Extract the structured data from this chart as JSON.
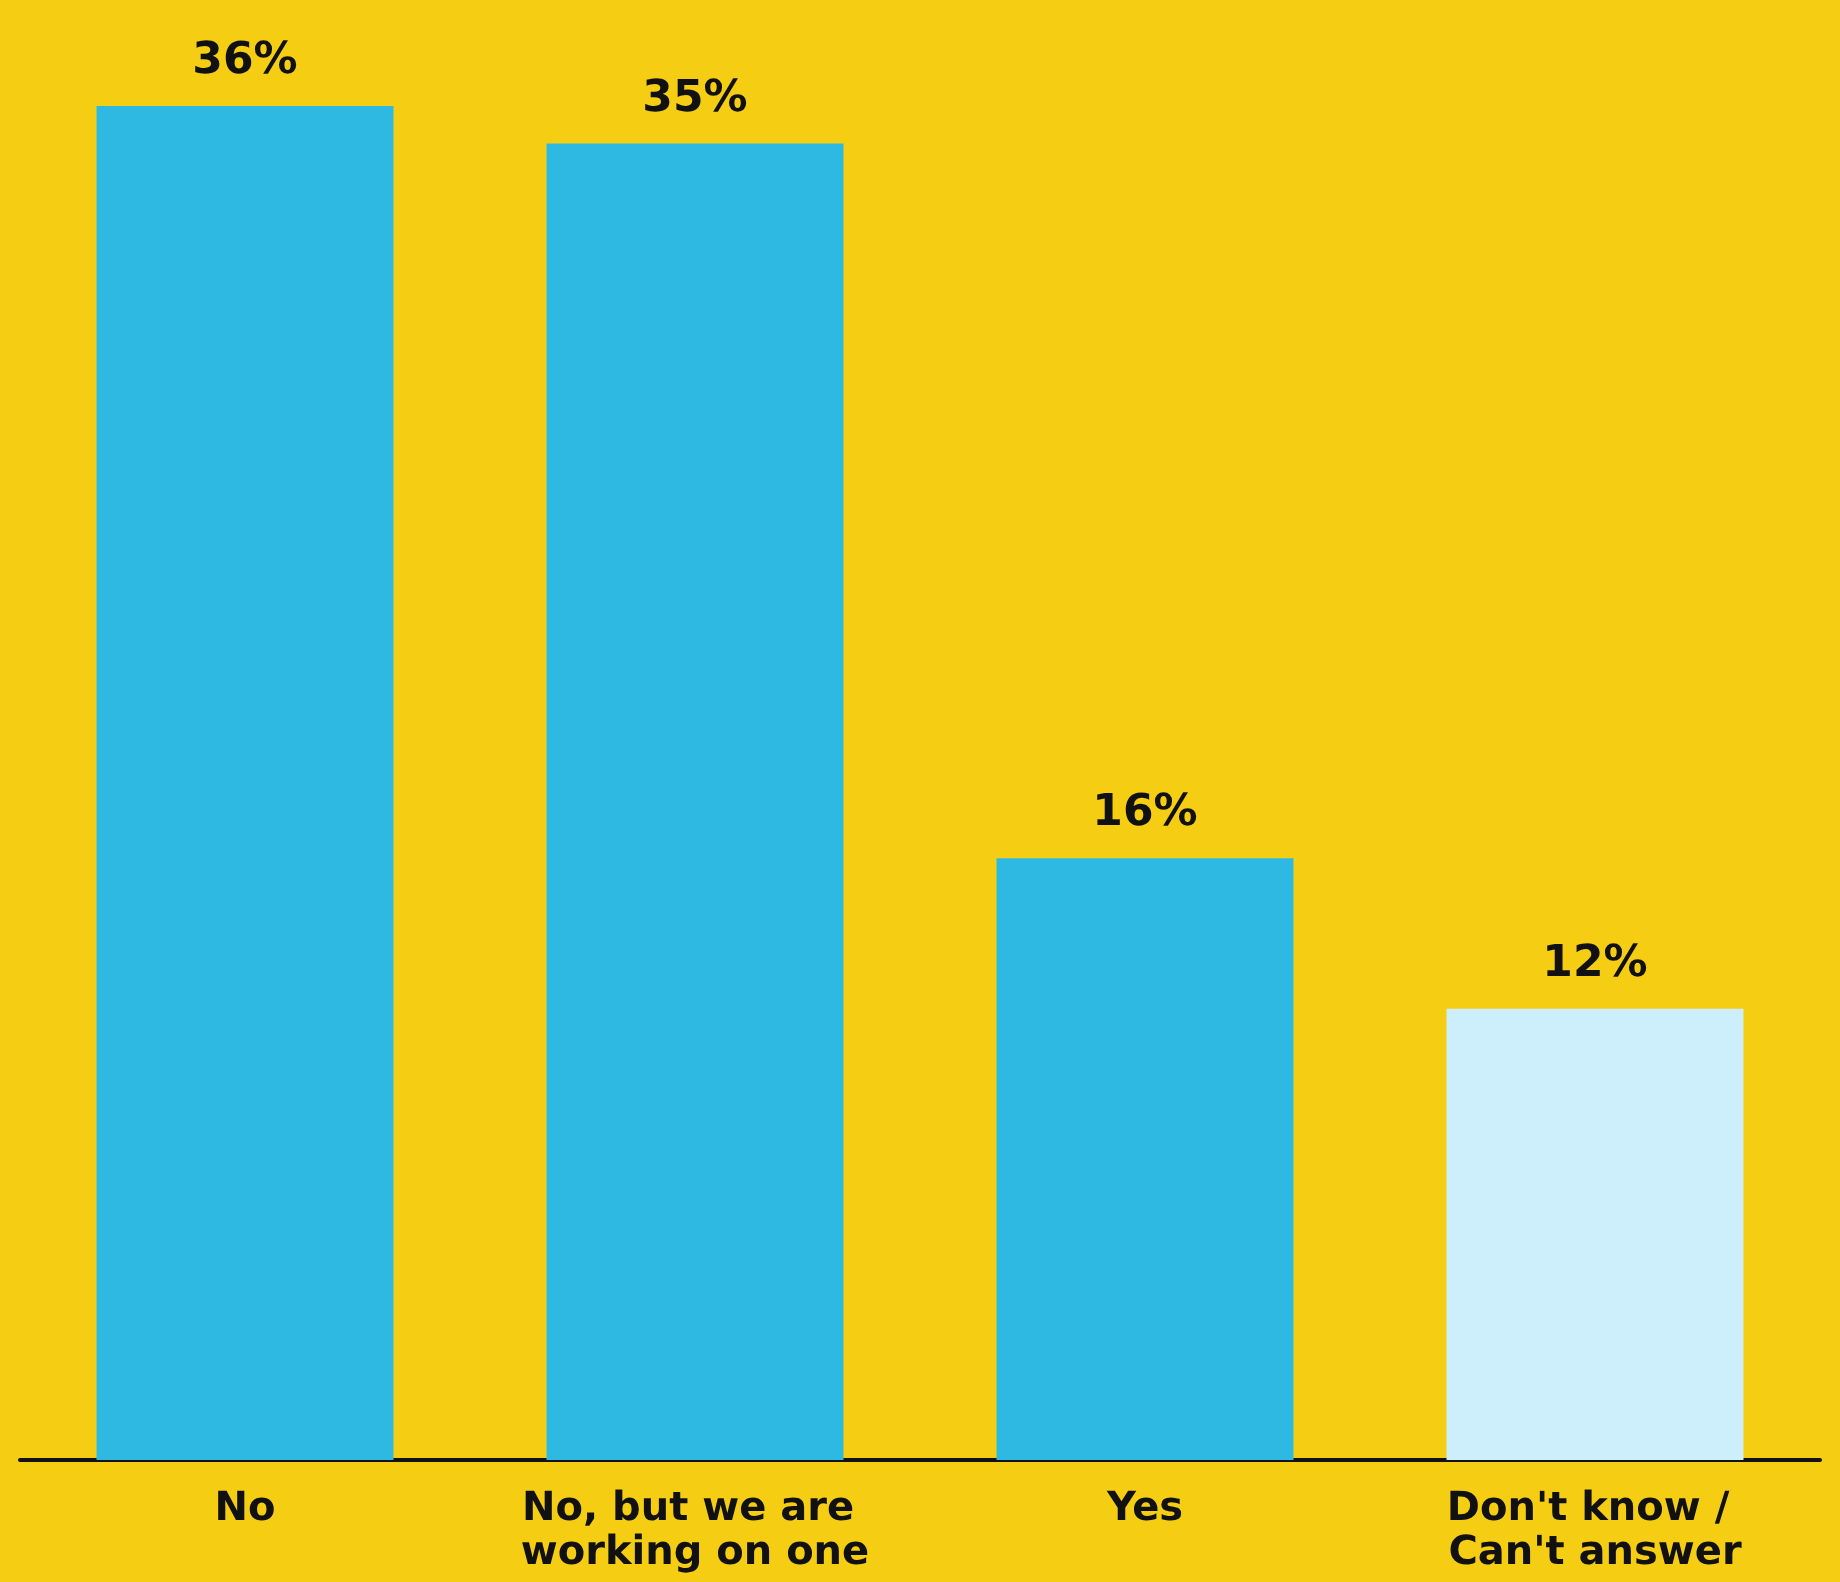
{
  "chart_data": {
    "type": "bar",
    "categories": [
      "No",
      "No, but we are working on one",
      "Yes",
      "Don't know / Can't answer"
    ],
    "values": [
      36,
      35,
      16,
      12
    ],
    "colors": [
      "#2eb9e3",
      "#2eb9e3",
      "#2eb9e3",
      "#cdeefb"
    ],
    "value_labels": [
      "36%",
      "35%",
      "16%",
      "12%"
    ]
  }
}
